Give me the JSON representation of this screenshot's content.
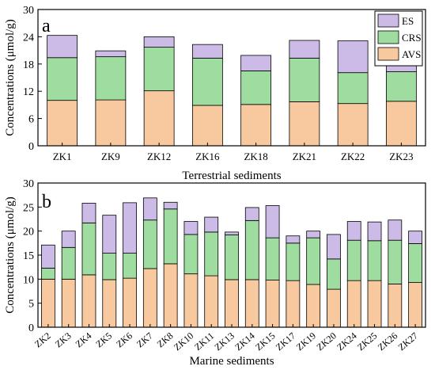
{
  "chart_data": [
    {
      "type": "bar",
      "stacked": true,
      "panel_label": "a",
      "xlabel": "Terrestrial sediments",
      "ylabel": "Concentrations (μmol/g)",
      "ylim": [
        0,
        30
      ],
      "yticks": [
        "0",
        "6",
        "12",
        "18",
        "24",
        "30"
      ],
      "categories": [
        "ZK1",
        "ZK9",
        "ZK12",
        "ZK16",
        "ZK18",
        "ZK21",
        "ZK22",
        "ZK23"
      ],
      "series": [
        {
          "name": "AVS",
          "color": "#f8c99e",
          "values": [
            10.0,
            10.1,
            12.1,
            8.9,
            9.1,
            9.7,
            9.3,
            9.8
          ]
        },
        {
          "name": "CRS",
          "color": "#9fdc9f",
          "values": [
            9.4,
            9.5,
            9.6,
            10.4,
            7.4,
            9.6,
            6.8,
            6.5
          ]
        },
        {
          "name": "ES",
          "color": "#cbbbe6",
          "values": [
            4.9,
            1.3,
            2.3,
            3.0,
            3.4,
            3.9,
            7.0,
            2.7
          ]
        }
      ],
      "legend": {
        "position": "top-right",
        "order": [
          "ES",
          "CRS",
          "AVS"
        ]
      },
      "grid": false
    },
    {
      "type": "bar",
      "stacked": true,
      "panel_label": "b",
      "xlabel": "Marine sediments",
      "ylabel": "Concentrations (μmol/g)",
      "ylim": [
        0,
        30
      ],
      "yticks": [
        "0",
        "5",
        "10",
        "15",
        "20",
        "25",
        "30"
      ],
      "categories": [
        "ZK2",
        "ZK3",
        "ZK4",
        "ZK5",
        "ZK6",
        "ZK7",
        "ZK8",
        "ZK10",
        "ZK11",
        "ZK13",
        "ZK14",
        "ZK15",
        "ZK17",
        "ZK19",
        "ZK20",
        "ZK24",
        "ZK25",
        "ZK26",
        "ZK27"
      ],
      "series": [
        {
          "name": "AVS",
          "color": "#f8c99e",
          "values": [
            10.0,
            10.0,
            10.9,
            9.9,
            10.2,
            12.2,
            13.2,
            11.1,
            10.7,
            9.9,
            9.9,
            9.8,
            9.7,
            8.9,
            7.9,
            9.7,
            9.7,
            9.0,
            9.3
          ]
        },
        {
          "name": "CRS",
          "color": "#9fdc9f",
          "values": [
            2.3,
            6.6,
            10.8,
            5.5,
            5.2,
            10.1,
            11.4,
            8.2,
            9.1,
            9.3,
            12.3,
            8.8,
            7.8,
            9.7,
            6.3,
            8.4,
            8.3,
            9.1,
            8.1
          ]
        },
        {
          "name": "ES",
          "color": "#cbbbe6",
          "values": [
            4.8,
            3.4,
            4.1,
            7.9,
            10.5,
            4.6,
            1.4,
            2.7,
            3.1,
            0.6,
            2.7,
            6.7,
            1.5,
            1.4,
            5.1,
            3.9,
            3.9,
            4.2,
            2.6
          ]
        }
      ],
      "grid": false
    }
  ]
}
